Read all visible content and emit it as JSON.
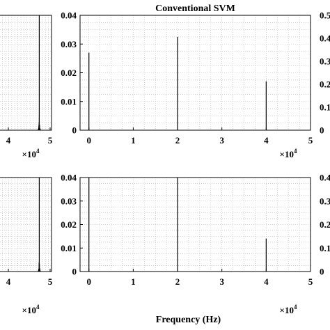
{
  "colors": {
    "background": "#ffffff",
    "axis": "#000000",
    "grid": "#b0b0b0",
    "spectrum": "#000000"
  },
  "chart_data": [
    {
      "type": "line",
      "panel": "top-left",
      "title": "",
      "xlabel": "",
      "ylabel": "",
      "xlim": [
        0,
        50000
      ],
      "x_ticks": [
        "4",
        "5"
      ],
      "x_multiplier": {
        "base": "×10",
        "exponent": "4"
      },
      "grid": true,
      "spikes": [
        {
          "x": 40000,
          "y": 0.5
        }
      ]
    },
    {
      "type": "line",
      "panel": "top-right",
      "title": "Conventional SVM",
      "xlabel": "",
      "ylabel": "",
      "xlim": [
        -2000,
        50000
      ],
      "ylim": [
        0,
        0.04
      ],
      "x_ticks": [
        "0",
        "1",
        "2",
        "3",
        "4",
        "5"
      ],
      "y_ticks": [
        "0",
        "0.01",
        "0.02",
        "0.03",
        "0.04"
      ],
      "x_multiplier": {
        "base": "×10",
        "exponent": "4"
      },
      "right_ticks": [
        "0",
        "0.1",
        "0.2",
        "0.3",
        "0.4",
        "0.5"
      ],
      "grid": true,
      "spikes": [
        {
          "x": 0,
          "y": 0.027
        },
        {
          "x": 20000,
          "y": 0.0325
        },
        {
          "x": 40000,
          "y": 0.017
        }
      ]
    },
    {
      "type": "line",
      "panel": "bottom-left",
      "title": "",
      "xlabel": "",
      "ylabel": "",
      "xlim": [
        0,
        50000
      ],
      "x_ticks": [
        "4",
        "5"
      ],
      "x_multiplier": {
        "base": "×10",
        "exponent": "4"
      },
      "grid": true,
      "spikes": [
        {
          "x": 40000,
          "y": 0.5
        }
      ]
    },
    {
      "type": "line",
      "panel": "bottom-right",
      "title": "",
      "xlabel": "Frequency (Hz)",
      "ylabel": "",
      "xlim": [
        -2000,
        50000
      ],
      "ylim": [
        0,
        0.04
      ],
      "x_ticks": [
        "0",
        "1",
        "2",
        "3",
        "4",
        "5"
      ],
      "y_ticks": [
        "0",
        "0.01",
        "0.02",
        "0.03",
        "0.04"
      ],
      "x_multiplier": {
        "base": "×10",
        "exponent": "4"
      },
      "right_ticks": [
        "0",
        "0.1",
        "0.2",
        "0.3",
        "0.4"
      ],
      "grid": true,
      "spikes": [
        {
          "x": 0,
          "y": 0.04
        },
        {
          "x": 20000,
          "y": 0.04
        },
        {
          "x": 40000,
          "y": 0.014
        }
      ]
    }
  ]
}
